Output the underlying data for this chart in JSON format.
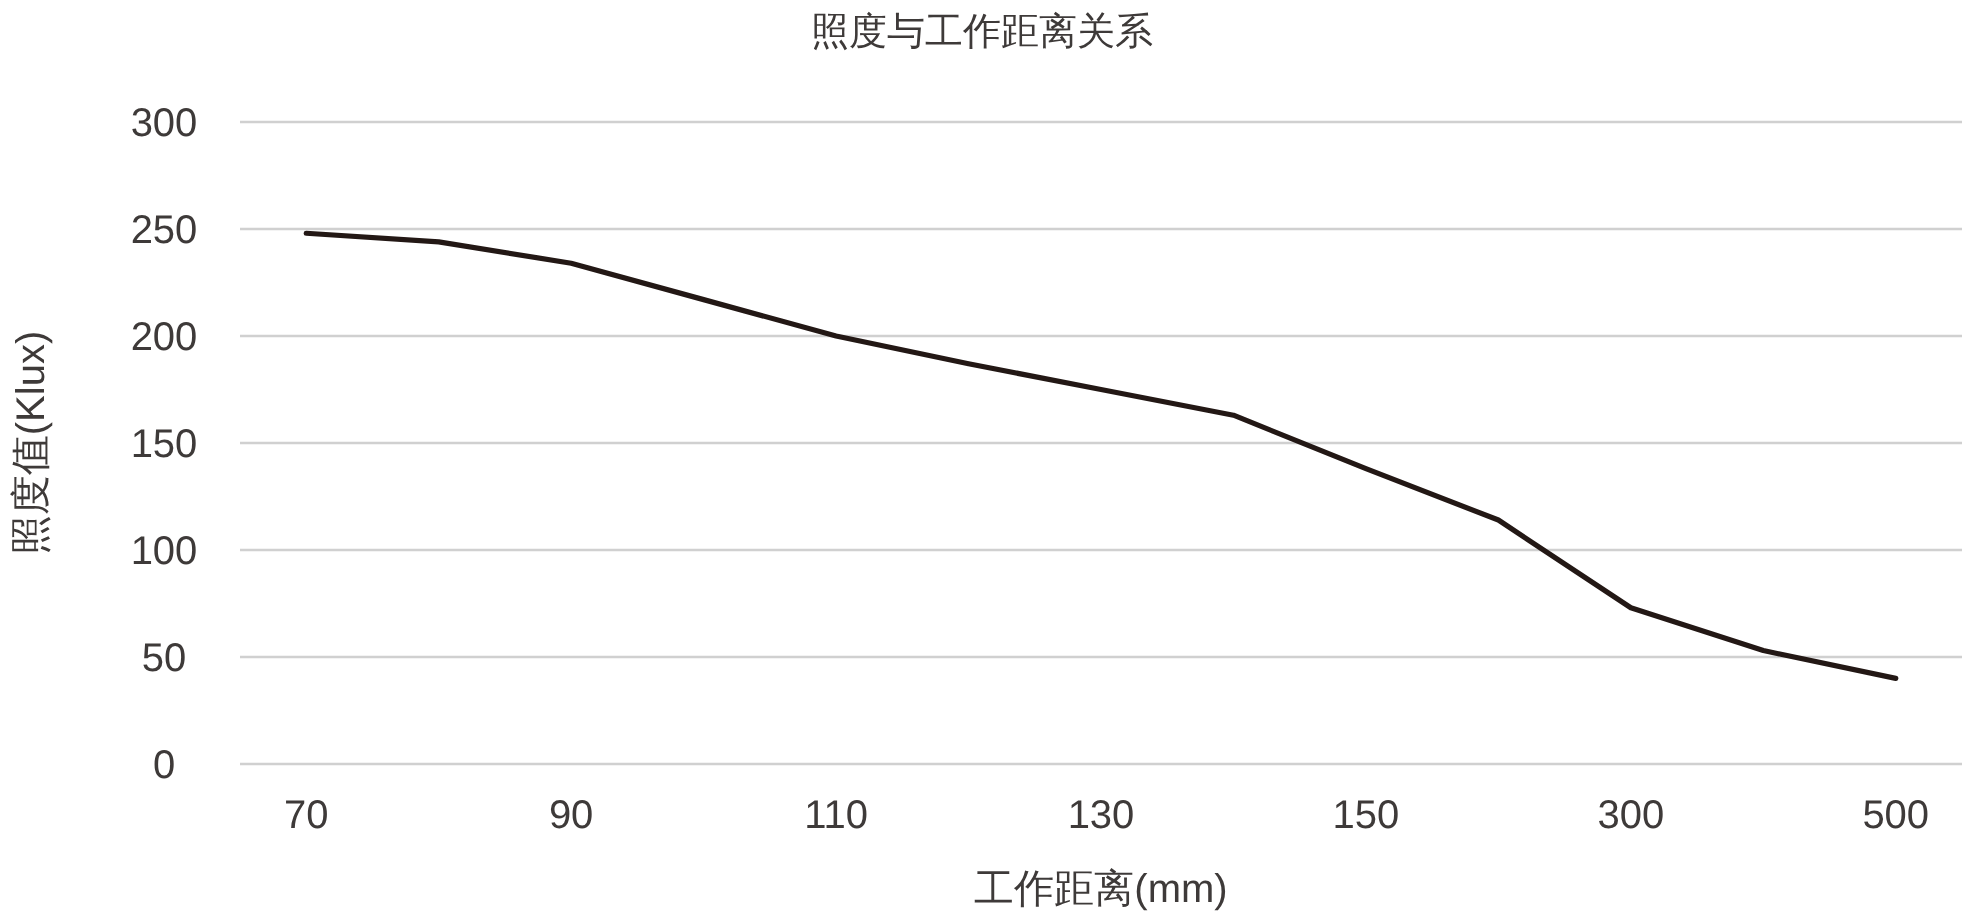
{
  "chart_data": {
    "type": "line",
    "title": "照度与工作距离关系",
    "xlabel": "工作距离(mm)",
    "ylabel": "照度值(Klux)",
    "categories": [
      "70",
      null,
      "90",
      null,
      "110",
      null,
      "130",
      null,
      "150",
      null,
      "300",
      null,
      "500"
    ],
    "series": [
      {
        "color": "#231815",
        "values": [
          248,
          244,
          234,
          217,
          200,
          187,
          175,
          163,
          138,
          114,
          73,
          53,
          40
        ]
      }
    ],
    "ylim": [
      0,
      300
    ],
    "yticks": [
      0,
      50,
      100,
      150,
      200,
      250,
      300
    ],
    "grid": "y"
  }
}
